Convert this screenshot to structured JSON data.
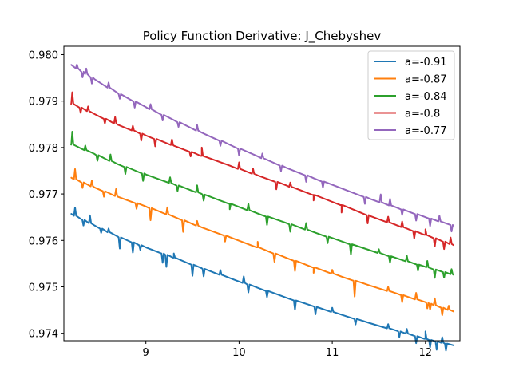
{
  "chart_data": {
    "type": "line",
    "title": "Policy Function Derivative: J_Chebyshev",
    "xlabel": "",
    "ylabel": "",
    "xlim": [
      8.12,
      12.37
    ],
    "ylim": [
      0.97384,
      0.98018
    ],
    "xticks": [
      9,
      10,
      11,
      12
    ],
    "xtick_labels": [
      "9",
      "10",
      "11",
      "12"
    ],
    "yticks": [
      0.974,
      0.975,
      0.976,
      0.977,
      0.978,
      0.979,
      0.98
    ],
    "ytick_labels": [
      "0.974",
      "0.975",
      "0.976",
      "0.977",
      "0.978",
      "0.979",
      "0.980"
    ],
    "grid": false,
    "legend_position": "top-right",
    "series": [
      {
        "name": "a=-0.91",
        "color": "#1f77b4",
        "x": [
          8.2,
          8.45,
          8.7,
          9.0,
          9.3,
          9.6,
          9.9,
          10.2,
          10.5,
          10.8,
          11.1,
          11.4,
          11.7,
          12.0,
          12.3
        ],
        "y": [
          0.97657,
          0.97632,
          0.97608,
          0.97585,
          0.97563,
          0.9754,
          0.97519,
          0.97498,
          0.97477,
          0.97458,
          0.9744,
          0.97422,
          0.97405,
          0.97388,
          0.97374
        ],
        "noise": [
          [
            8.24,
            0.00018
          ],
          [
            8.33,
            -0.00012
          ],
          [
            8.4,
            0.00017
          ],
          [
            8.52,
            -9e-05
          ],
          [
            8.6,
            8e-05
          ],
          [
            8.72,
            -0.00024
          ],
          [
            8.86,
            -0.00022
          ],
          [
            8.94,
            -0.0001
          ],
          [
            9.18,
            -0.0002
          ],
          [
            9.22,
            -0.00026
          ],
          [
            9.3,
            9e-05
          ],
          [
            9.5,
            -0.00024
          ],
          [
            9.62,
            -0.00016
          ],
          [
            9.8,
            0.0001
          ],
          [
            10.05,
            0.00014
          ],
          [
            10.1,
            -0.00017
          ],
          [
            10.3,
            -0.00013
          ],
          [
            10.6,
            -0.0002
          ],
          [
            10.82,
            -0.00016
          ],
          [
            11.0,
            9e-05
          ],
          [
            11.25,
            -0.00012
          ],
          [
            11.6,
            9e-05
          ],
          [
            11.72,
            -0.00012
          ],
          [
            11.8,
            0.0001
          ],
          [
            11.9,
            -0.00015
          ],
          [
            12.0,
            0.00016
          ],
          [
            12.05,
            -0.00016
          ],
          [
            12.12,
            -0.00018
          ],
          [
            12.18,
            0.00012
          ],
          [
            12.22,
            -0.00015
          ]
        ]
      },
      {
        "name": "a=-0.87",
        "color": "#ff7f0e",
        "x": [
          8.2,
          8.45,
          8.7,
          9.0,
          9.3,
          9.6,
          9.9,
          10.2,
          10.5,
          10.8,
          11.1,
          11.4,
          11.7,
          12.0,
          12.3
        ],
        "y": [
          0.97735,
          0.97714,
          0.97694,
          0.97673,
          0.97651,
          0.97628,
          0.97607,
          0.97585,
          0.97563,
          0.97542,
          0.97522,
          0.97503,
          0.97485,
          0.97467,
          0.97447
        ],
        "noise": [
          [
            8.24,
            0.00022
          ],
          [
            8.32,
            -0.00012
          ],
          [
            8.42,
            0.00012
          ],
          [
            8.55,
            -0.00012
          ],
          [
            8.68,
            0.00015
          ],
          [
            8.9,
            -0.00012
          ],
          [
            9.05,
            -0.00026
          ],
          [
            9.23,
            0.00015
          ],
          [
            9.4,
            -0.00025
          ],
          [
            9.55,
            0.0001
          ],
          [
            9.85,
            -0.00013
          ],
          [
            10.2,
            0.00012
          ],
          [
            10.38,
            -0.00018
          ],
          [
            10.6,
            -0.00022
          ],
          [
            10.8,
            -0.00012
          ],
          [
            11.0,
            8e-05
          ],
          [
            11.24,
            -0.00034
          ],
          [
            11.6,
            9e-05
          ],
          [
            11.75,
            -0.00015
          ],
          [
            11.9,
            0.00014
          ],
          [
            12.02,
            -0.00012
          ],
          [
            12.05,
            -0.00013
          ],
          [
            12.1,
            0.00015
          ],
          [
            12.18,
            -0.00016
          ],
          [
            12.25,
            9e-05
          ]
        ]
      },
      {
        "name": "a=-0.84",
        "color": "#2ca02c",
        "x": [
          8.2,
          8.45,
          8.7,
          9.0,
          9.3,
          9.6,
          9.9,
          10.2,
          10.5,
          10.8,
          11.1,
          11.4,
          11.7,
          12.0,
          12.3
        ],
        "y": [
          0.97807,
          0.97786,
          0.97764,
          0.97742,
          0.97721,
          0.977,
          0.97679,
          0.97658,
          0.97638,
          0.97618,
          0.97598,
          0.97579,
          0.97561,
          0.97543,
          0.97526
        ],
        "noise": [
          [
            8.21,
            0.00028
          ],
          [
            8.35,
            0.0001
          ],
          [
            8.48,
            -0.00012
          ],
          [
            8.62,
            0.00014
          ],
          [
            8.78,
            -0.00015
          ],
          [
            8.97,
            -0.00016
          ],
          [
            9.26,
            0.00012
          ],
          [
            9.34,
            -0.00012
          ],
          [
            9.55,
            0.00015
          ],
          [
            9.62,
            -0.00013
          ],
          [
            9.9,
            -0.00012
          ],
          [
            10.1,
            0.00014
          ],
          [
            10.3,
            -0.00018
          ],
          [
            10.55,
            -0.00016
          ],
          [
            10.72,
            0.00014
          ],
          [
            10.95,
            -0.00014
          ],
          [
            11.2,
            -0.00022
          ],
          [
            11.5,
            8e-05
          ],
          [
            11.62,
            -0.00014
          ],
          [
            11.8,
            0.00012
          ],
          [
            11.92,
            -0.00013
          ],
          [
            12.02,
            0.00014
          ],
          [
            12.1,
            -0.00018
          ],
          [
            12.2,
            -0.00012
          ],
          [
            12.28,
            0.00011
          ]
        ]
      },
      {
        "name": "a=-0.8",
        "color": "#d62728",
        "x": [
          8.2,
          8.45,
          8.7,
          9.0,
          9.3,
          9.6,
          9.9,
          10.2,
          10.5,
          10.8,
          11.1,
          11.4,
          11.7,
          12.0,
          12.3
        ],
        "y": [
          0.97895,
          0.97872,
          0.97849,
          0.97826,
          0.97804,
          0.97782,
          0.97761,
          0.9774,
          0.97719,
          0.97698,
          0.97676,
          0.97653,
          0.97632,
          0.97612,
          0.9759
        ],
        "noise": [
          [
            8.21,
            0.00025
          ],
          [
            8.3,
            -0.00011
          ],
          [
            8.38,
            0.0001
          ],
          [
            8.56,
            -0.0001
          ],
          [
            8.67,
            0.00014
          ],
          [
            8.86,
            0.0001
          ],
          [
            8.95,
            -0.00015
          ],
          [
            9.1,
            -0.00016
          ],
          [
            9.28,
            0.00012
          ],
          [
            9.48,
            -0.0001
          ],
          [
            9.6,
            0.00018
          ],
          [
            10.0,
            0.00014
          ],
          [
            10.15,
            0.00011
          ],
          [
            10.4,
            -0.00016
          ],
          [
            10.55,
            9e-05
          ],
          [
            10.8,
            -0.00012
          ],
          [
            11.1,
            -0.00016
          ],
          [
            11.38,
            -0.00018
          ],
          [
            11.6,
            0.00012
          ],
          [
            11.75,
            0.00012
          ],
          [
            11.88,
            -0.00016
          ],
          [
            12.0,
            0.00012
          ],
          [
            12.1,
            -0.00018
          ],
          [
            12.2,
            -0.00016
          ],
          [
            12.27,
            0.00014
          ]
        ]
      },
      {
        "name": "a=-0.77",
        "color": "#9467bd",
        "x": [
          8.2,
          8.45,
          8.7,
          9.0,
          9.3,
          9.6,
          9.9,
          10.2,
          10.5,
          10.8,
          11.1,
          11.4,
          11.7,
          12.0,
          12.3
        ],
        "y": [
          0.97978,
          0.97947,
          0.97917,
          0.97887,
          0.97859,
          0.97832,
          0.97806,
          0.97781,
          0.97757,
          0.97734,
          0.97712,
          0.9769,
          0.9767,
          0.9765,
          0.97632
        ],
        "noise": [
          [
            8.26,
            8e-05
          ],
          [
            8.32,
            -0.00012
          ],
          [
            8.36,
            0.00012
          ],
          [
            8.42,
            -0.00013
          ],
          [
            8.6,
            0.00011
          ],
          [
            8.72,
            -0.0001
          ],
          [
            8.88,
            -0.00013
          ],
          [
            9.05,
            0.00011
          ],
          [
            9.18,
            -0.00012
          ],
          [
            9.35,
            -0.0001
          ],
          [
            9.55,
            0.00012
          ],
          [
            9.8,
            -0.00011
          ],
          [
            10.0,
            -0.00015
          ],
          [
            10.25,
            0.0001
          ],
          [
            10.45,
            -0.00012
          ],
          [
            10.72,
            -0.00014
          ],
          [
            10.9,
            -0.00013
          ],
          [
            11.35,
            -0.00015
          ],
          [
            11.52,
            0.00017
          ],
          [
            11.62,
            0.00014
          ],
          [
            11.75,
            -0.00012
          ],
          [
            11.9,
            -0.00014
          ],
          [
            12.05,
            -0.00016
          ],
          [
            12.15,
            0.00012
          ],
          [
            12.28,
            -0.00014
          ]
        ]
      }
    ]
  }
}
